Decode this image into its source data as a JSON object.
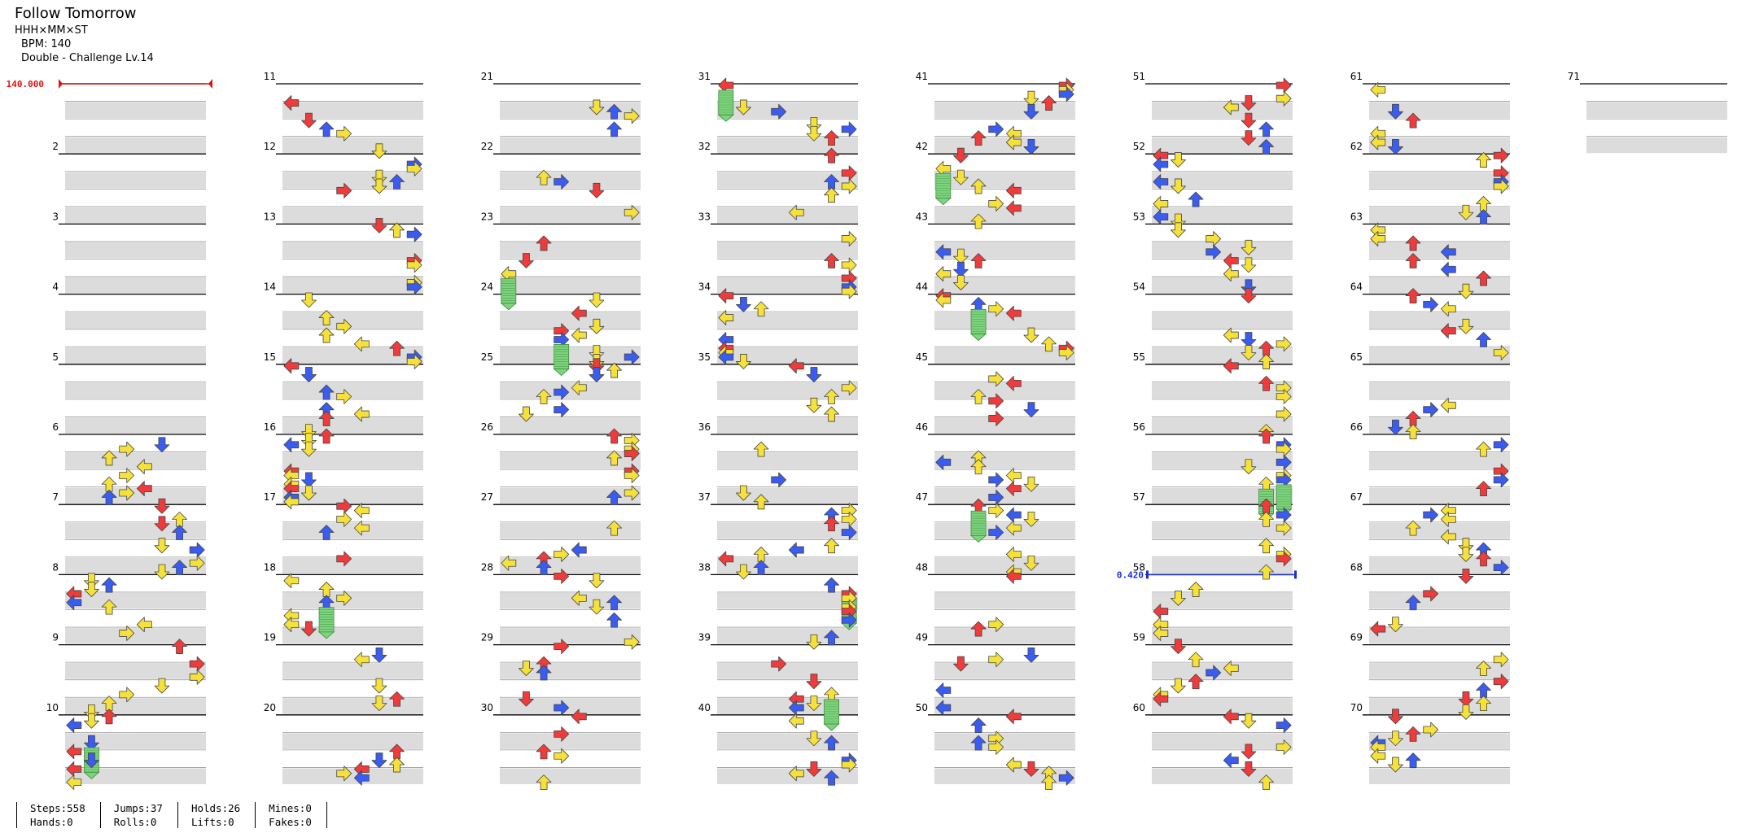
{
  "song": {
    "title": "Follow Tomorrow",
    "artist": "HHH×MM×ST",
    "bpm_text": "BPM: 140",
    "difficulty": "Double - Challenge Lv.14"
  },
  "chart": {
    "measure_labels": [
      "2",
      "3",
      "4",
      "5",
      "6",
      "7",
      "8",
      "9",
      "10",
      "11",
      "12",
      "13",
      "14",
      "15",
      "16",
      "17",
      "18",
      "19",
      "20",
      "21",
      "22",
      "23",
      "24",
      "25",
      "26",
      "27",
      "28",
      "29",
      "30",
      "31",
      "32",
      "33",
      "34",
      "35",
      "36",
      "37",
      "38",
      "39",
      "40",
      "41",
      "42",
      "43",
      "44",
      "45",
      "46",
      "47",
      "48",
      "49",
      "50",
      "51",
      "52",
      "53",
      "54",
      "55",
      "56",
      "57",
      "58",
      "59",
      "60",
      "61",
      "62",
      "63",
      "64",
      "65",
      "66",
      "67",
      "68",
      "69",
      "70",
      "71"
    ],
    "bpm_marker": {
      "label": "140.000",
      "value": 140,
      "measure": 1
    },
    "speed_marker": {
      "label": "0.420",
      "value": 0.42,
      "measure": 58
    },
    "colors": {
      "red": "#ef3b3b",
      "blue": "#3a5cf0",
      "yellow": "#f5e13a",
      "green": "#7ed47e",
      "band": "#dcdcdc",
      "bpm": "#e01010",
      "speed": "#1a30d0"
    }
  },
  "stats": {
    "steps": "Steps:558",
    "hands": "Hands:0",
    "jumps": "Jumps:37",
    "rolls": "Rolls:0",
    "holds": "Holds:26",
    "lifts": "Lifts:0",
    "mines": "Mines:0",
    "fakes": "Fakes:0"
  }
}
